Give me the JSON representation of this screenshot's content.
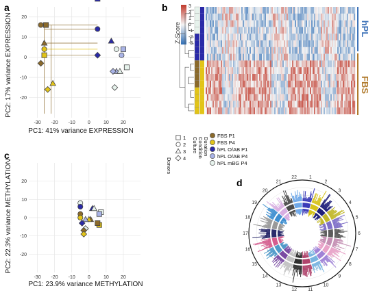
{
  "panels": {
    "a": "a",
    "b": "b",
    "c": "c",
    "d": "d"
  },
  "colors": {
    "FBS P1": "#8b6a2b",
    "FBS P4": "#e2c418",
    "hPL O/AB P1": "#2a2aa8",
    "hPL O/AB P4": "#a9b3e6",
    "hPL mBG P4": "#e6f2ec",
    "hPL_label": "#3f73b8",
    "FBS_label": "#b07a2c",
    "grid": "#e6e6e6"
  },
  "legend": {
    "donors_title": "Donors",
    "donors": [
      {
        "label": "1",
        "shape": "square"
      },
      {
        "label": "2",
        "shape": "circle"
      },
      {
        "label": "3",
        "shape": "triangle"
      },
      {
        "label": "4",
        "shape": "diamond"
      }
    ],
    "condition_title_lines": [
      "Culture",
      "Condition",
      "Duration"
    ],
    "conditions": [
      "FBS P1",
      "FBS P4",
      "hPL O/AB P1",
      "hPL O/AB P4",
      "hPL mBG P4"
    ]
  },
  "heatmap": {
    "colorbar_title": "Z-Score",
    "colorbar_ticks": [
      "3",
      "2",
      "1",
      "0",
      "-1",
      "-2",
      "-3"
    ],
    "group_labels": [
      "hPL",
      "FBS"
    ]
  },
  "chart_data": [
    {
      "id": "a",
      "type": "scatter",
      "xlabel": "PC1: 41% variance EXPRESSION",
      "ylabel": "PC2: 17% variance EXPRESSION",
      "xlim": [
        -35,
        30
      ],
      "ylim": [
        -30,
        25
      ],
      "xticks": [
        -30,
        -20,
        -10,
        0,
        10,
        20
      ],
      "yticks": [
        20,
        10,
        0,
        -10,
        -20
      ],
      "grid": true,
      "points": [
        {
          "x": 5,
          "y": 29,
          "condition": "hPL O/AB P1",
          "donor": "1"
        },
        {
          "x": 5,
          "y": 14,
          "condition": "hPL O/AB P1",
          "donor": "2"
        },
        {
          "x": 13,
          "y": 8,
          "condition": "hPL O/AB P1",
          "donor": "3"
        },
        {
          "x": 5,
          "y": 1,
          "condition": "hPL O/AB P1",
          "donor": "4"
        },
        {
          "x": 20,
          "y": 4,
          "condition": "hPL O/AB P4",
          "donor": "1"
        },
        {
          "x": 19,
          "y": 1,
          "condition": "hPL O/AB P4",
          "donor": "2"
        },
        {
          "x": 16,
          "y": -7,
          "condition": "hPL O/AB P4",
          "donor": "3"
        },
        {
          "x": 14,
          "y": -7,
          "condition": "hPL O/AB P4",
          "donor": "4"
        },
        {
          "x": 22,
          "y": -5,
          "condition": "hPL mBG P4",
          "donor": "1"
        },
        {
          "x": 16,
          "y": 4,
          "condition": "hPL mBG P4",
          "donor": "2"
        },
        {
          "x": 18,
          "y": -7,
          "condition": "hPL mBG P4",
          "donor": "3"
        },
        {
          "x": 15,
          "y": -15,
          "condition": "hPL mBG P4",
          "donor": "4"
        },
        {
          "x": -25,
          "y": 16,
          "condition": "FBS P1",
          "donor": "1"
        },
        {
          "x": -28,
          "y": 16,
          "condition": "FBS P1",
          "donor": "2"
        },
        {
          "x": -26,
          "y": 7,
          "condition": "FBS P1",
          "donor": "3"
        },
        {
          "x": -28,
          "y": -3,
          "condition": "FBS P1",
          "donor": "4"
        },
        {
          "x": -26,
          "y": 1,
          "condition": "FBS P4",
          "donor": "1"
        },
        {
          "x": -26,
          "y": 4,
          "condition": "FBS P4",
          "donor": "2"
        },
        {
          "x": -21,
          "y": -13,
          "condition": "FBS P4",
          "donor": "3"
        },
        {
          "x": -24,
          "y": -16,
          "condition": "FBS P4",
          "donor": "4"
        }
      ]
    },
    {
      "id": "c",
      "type": "scatter",
      "xlabel": "PC1: 23.9% variance METHYLATION",
      "ylabel": "PC2: 22.3% variance METHYLATION",
      "xlim": [
        -35,
        30
      ],
      "ylim": [
        -30,
        30
      ],
      "xticks": [
        -30,
        -20,
        -10,
        0,
        10,
        20
      ],
      "yticks": [
        20,
        10,
        0,
        -10,
        -20
      ],
      "grid": true,
      "points": [
        {
          "x": -5,
          "y": 8,
          "condition": "hPL mBG P4",
          "donor": "2"
        },
        {
          "x": -5,
          "y": 6,
          "condition": "hPL O/AB P1",
          "donor": "2"
        },
        {
          "x": -5,
          "y": 2,
          "condition": "FBS P1",
          "donor": "2"
        },
        {
          "x": -5,
          "y": 0,
          "condition": "FBS P4",
          "donor": "2"
        },
        {
          "x": 2,
          "y": 5,
          "condition": "hPL O/AB P1",
          "donor": "3"
        },
        {
          "x": 3,
          "y": 5,
          "condition": "hPL mBG P4",
          "donor": "3"
        },
        {
          "x": 7,
          "y": 3,
          "condition": "hPL mBG P4",
          "donor": "1"
        },
        {
          "x": 6,
          "y": 2,
          "condition": "hPL O/AB P4",
          "donor": "1"
        },
        {
          "x": 1,
          "y": -1,
          "condition": "FBS P1",
          "donor": "3"
        },
        {
          "x": 0,
          "y": -1,
          "condition": "FBS P4",
          "donor": "3"
        },
        {
          "x": -2,
          "y": -1,
          "condition": "hPL O/AB P4",
          "donor": "3"
        },
        {
          "x": 6,
          "y": -4,
          "condition": "FBS P4",
          "donor": "1"
        },
        {
          "x": 5,
          "y": -3,
          "condition": "FBS P1",
          "donor": "1"
        },
        {
          "x": -4,
          "y": -3,
          "condition": "hPL O/AB P1",
          "donor": "4"
        },
        {
          "x": -2,
          "y": -6,
          "condition": "hPL mBG P4",
          "donor": "4"
        },
        {
          "x": -3,
          "y": -7,
          "condition": "FBS P1",
          "donor": "4"
        },
        {
          "x": -3,
          "y": -9,
          "condition": "FBS P4",
          "donor": "4"
        }
      ]
    },
    {
      "id": "b",
      "type": "heatmap",
      "title": "Z-Score",
      "zlim": [
        -3,
        3
      ],
      "row_groups": [
        {
          "name": "hPL",
          "rows": 8
        },
        {
          "name": "FBS",
          "rows": 8
        }
      ]
    },
    {
      "id": "d",
      "type": "circular",
      "chromosome_labels": [
        "1",
        "2",
        "3",
        "4",
        "5",
        "6",
        "7",
        "8",
        "9",
        "10",
        "11",
        "12",
        "13",
        "14",
        "15",
        "16",
        "17",
        "18",
        "19",
        "20",
        "21",
        "22"
      ]
    }
  ]
}
